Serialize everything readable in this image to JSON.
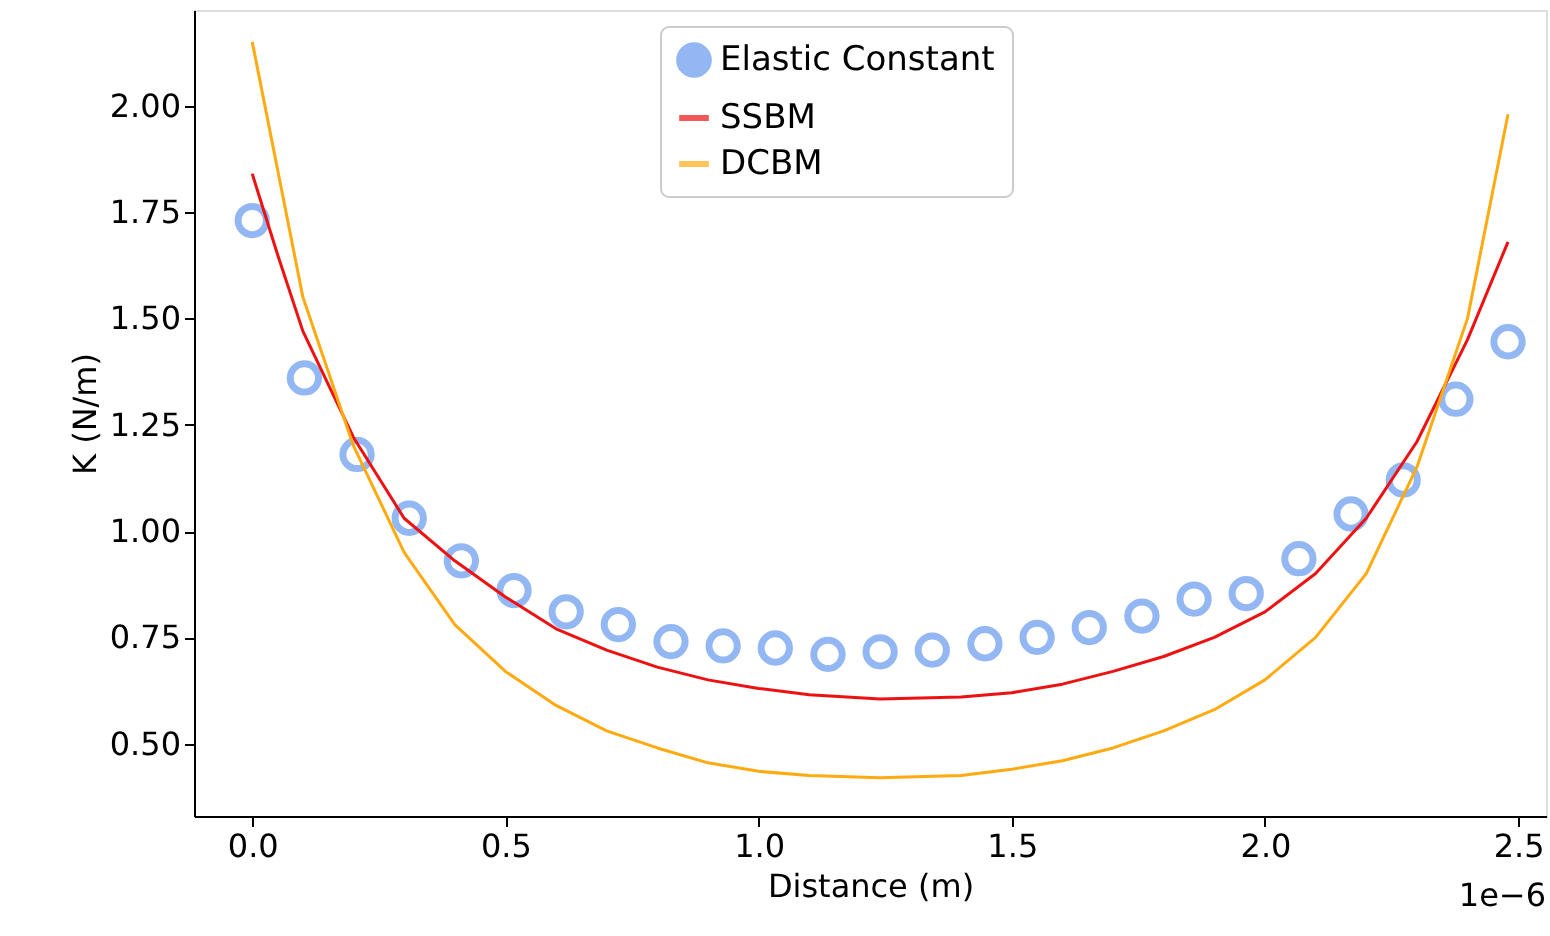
{
  "chart_data": {
    "type": "scatter",
    "xlabel": "Distance (m)",
    "ylabel": "K (N/m)",
    "xlim": [
      -0.115,
      2.555
    ],
    "ylim": [
      0.33,
      2.225
    ],
    "xticks": [
      {
        "value": 0,
        "label": "0.0"
      },
      {
        "value": 0.5,
        "label": "0.5"
      },
      {
        "value": 1.0,
        "label": "1.0"
      },
      {
        "value": 1.5,
        "label": "1.5"
      },
      {
        "value": 2.0,
        "label": "2.0"
      },
      {
        "value": 2.5,
        "label": "2.5"
      }
    ],
    "yticks": [
      {
        "value": 0.5,
        "label": "0.50"
      },
      {
        "value": 0.75,
        "label": "0.75"
      },
      {
        "value": 1.0,
        "label": "1.00"
      },
      {
        "value": 1.25,
        "label": "1.25"
      },
      {
        "value": 1.5,
        "label": "1.50"
      },
      {
        "value": 1.75,
        "label": "1.75"
      },
      {
        "value": 2.0,
        "label": "2.00"
      }
    ],
    "legend": "top",
    "grid": false,
    "annotations": [
      "1e−6"
    ],
    "series": [
      {
        "name": "Elastic Constant",
        "type": "scatter",
        "marker": "circle",
        "color": "#6699ee",
        "x": [
          0,
          0.103,
          0.207,
          0.31,
          0.413,
          0.517,
          0.62,
          0.723,
          0.827,
          0.93,
          1.033,
          1.137,
          1.24,
          1.343,
          1.447,
          1.55,
          1.653,
          1.757,
          1.86,
          1.963,
          2.067,
          2.17,
          2.273,
          2.377,
          2.48
        ],
        "values": [
          1.73,
          1.36,
          1.18,
          1.03,
          0.93,
          0.86,
          0.81,
          0.78,
          0.74,
          0.73,
          0.725,
          0.71,
          0.716,
          0.72,
          0.735,
          0.75,
          0.773,
          0.8,
          0.84,
          0.853,
          0.935,
          1.04,
          1.12,
          1.31,
          1.445
        ]
      },
      {
        "name": "SSBM",
        "type": "line",
        "color": "#ee1111",
        "x": [
          0,
          0.05,
          0.1,
          0.2,
          0.3,
          0.4,
          0.5,
          0.6,
          0.7,
          0.8,
          0.9,
          1.0,
          1.1,
          1.24,
          1.4,
          1.5,
          1.6,
          1.7,
          1.8,
          1.9,
          2.0,
          2.1,
          2.2,
          2.3,
          2.4,
          2.48
        ],
        "values": [
          1.84,
          1.65,
          1.47,
          1.22,
          1.03,
          0.93,
          0.845,
          0.77,
          0.72,
          0.68,
          0.65,
          0.63,
          0.615,
          0.605,
          0.61,
          0.62,
          0.64,
          0.67,
          0.705,
          0.75,
          0.81,
          0.9,
          1.03,
          1.21,
          1.45,
          1.68
        ]
      },
      {
        "name": "DCBM",
        "type": "line",
        "color": "#ffaa11",
        "x": [
          0,
          0.1,
          0.2,
          0.3,
          0.4,
          0.5,
          0.6,
          0.7,
          0.8,
          0.9,
          1.0,
          1.1,
          1.24,
          1.4,
          1.5,
          1.6,
          1.7,
          1.8,
          1.9,
          2.0,
          2.1,
          2.2,
          2.3,
          2.4,
          2.48
        ],
        "values": [
          2.15,
          1.55,
          1.2,
          0.95,
          0.78,
          0.67,
          0.59,
          0.53,
          0.49,
          0.455,
          0.435,
          0.425,
          0.42,
          0.425,
          0.44,
          0.46,
          0.49,
          0.53,
          0.58,
          0.65,
          0.75,
          0.9,
          1.15,
          1.5,
          1.98
        ]
      }
    ]
  }
}
